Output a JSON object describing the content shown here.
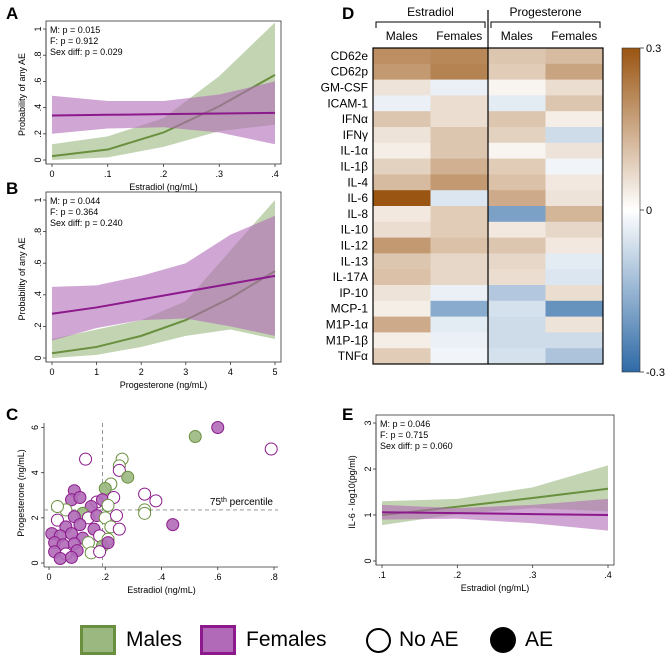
{
  "colors": {
    "males": "#6a8f3e",
    "males_fill": "#9ab87f",
    "females": "#8c1a8c",
    "females_fill": "#b06ab8",
    "heat_low": "#2f6aa6",
    "heat_high": "#9a5512"
  },
  "panels": {
    "A": "A",
    "B": "B",
    "C": "C",
    "D": "D",
    "E": "E"
  },
  "chart_data": [
    {
      "panel": "A",
      "type": "line",
      "xlabel": "Estradiol (ng/mL)",
      "ylabel": "Probability of any AE",
      "xlim": [
        0,
        0.4
      ],
      "ylim": [
        0,
        1
      ],
      "xticks": [
        "0",
        ".1",
        ".2",
        ".3",
        ".4"
      ],
      "xtick_values": [
        0,
        0.1,
        0.2,
        0.3,
        0.4
      ],
      "yticks": [
        "0",
        ".2",
        ".4",
        ".6",
        ".8",
        "1"
      ],
      "ytick_values": [
        0,
        0.2,
        0.4,
        0.6,
        0.8,
        1
      ],
      "annotations": [
        "M: p = 0.015",
        "F: p = 0.912",
        "Sex diff: p = 0.029"
      ],
      "series": [
        {
          "name": "Males",
          "x": [
            0,
            0.1,
            0.2,
            0.3,
            0.4
          ],
          "y": [
            0.03,
            0.08,
            0.21,
            0.41,
            0.65
          ],
          "ci_low": [
            0.0,
            0.02,
            0.1,
            0.22,
            0.27
          ],
          "ci_high": [
            0.12,
            0.18,
            0.32,
            0.64,
            1.05
          ]
        },
        {
          "name": "Females",
          "x": [
            0,
            0.1,
            0.2,
            0.3,
            0.4
          ],
          "y": [
            0.34,
            0.345,
            0.35,
            0.355,
            0.36
          ],
          "ci_low": [
            0.2,
            0.24,
            0.25,
            0.21,
            0.12
          ],
          "ci_high": [
            0.49,
            0.45,
            0.45,
            0.5,
            0.6
          ]
        }
      ]
    },
    {
      "panel": "B",
      "type": "line",
      "xlabel": "Progesterone (ng/mL)",
      "ylabel": "Probability of any AE",
      "xlim": [
        0,
        5
      ],
      "ylim": [
        0,
        1
      ],
      "xticks": [
        "0",
        "1",
        "2",
        "3",
        "4",
        "5"
      ],
      "xtick_values": [
        0,
        1,
        2,
        3,
        4,
        5
      ],
      "yticks": [
        "0",
        ".2",
        ".4",
        ".6",
        ".8",
        "1"
      ],
      "ytick_values": [
        0,
        0.2,
        0.4,
        0.6,
        0.8,
        1
      ],
      "annotations": [
        "M: p = 0.044",
        "F: p = 0.364",
        "Sex diff: p = 0.240"
      ],
      "series": [
        {
          "name": "Males",
          "x": [
            0,
            1,
            2,
            3,
            4,
            5
          ],
          "y": [
            0.03,
            0.07,
            0.14,
            0.24,
            0.38,
            0.55
          ],
          "ci_low": [
            0.0,
            0.02,
            0.07,
            0.14,
            0.18,
            0.12
          ],
          "ci_high": [
            0.12,
            0.18,
            0.24,
            0.36,
            0.68,
            1.0
          ]
        },
        {
          "name": "Females",
          "x": [
            0,
            1,
            2,
            3,
            4,
            5
          ],
          "y": [
            0.28,
            0.32,
            0.37,
            0.42,
            0.47,
            0.52
          ],
          "ci_low": [
            0.11,
            0.19,
            0.24,
            0.25,
            0.2,
            0.14
          ],
          "ci_high": [
            0.45,
            0.46,
            0.52,
            0.6,
            0.78,
            0.9
          ]
        }
      ]
    },
    {
      "panel": "C",
      "type": "scatter",
      "xlabel": "Estradiol (ng/mL)",
      "ylabel": "Progesterone (ng/mL)",
      "xlim": [
        0,
        0.8
      ],
      "ylim": [
        0,
        6.2
      ],
      "xticks": [
        "0",
        ".2",
        ".4",
        ".6",
        ".8"
      ],
      "xtick_values": [
        0,
        0.2,
        0.4,
        0.6,
        0.8
      ],
      "yticks": [
        "0",
        "2",
        "4",
        "6"
      ],
      "ytick_values": [
        0,
        2,
        4,
        6
      ],
      "reference_x": 0.19,
      "reference_y": 2.35,
      "reference_label": "75",
      "reference_label_sup": "th",
      "reference_label_tail": " percentile",
      "points": [
        {
          "x": 0.52,
          "y": 5.6,
          "group": "Males",
          "ae": true
        },
        {
          "x": 0.6,
          "y": 6.0,
          "group": "Females",
          "ae": true
        },
        {
          "x": 0.79,
          "y": 5.05,
          "group": "Females",
          "ae": false
        },
        {
          "x": 0.13,
          "y": 4.6,
          "group": "Females",
          "ae": false
        },
        {
          "x": 0.26,
          "y": 4.6,
          "group": "Males",
          "ae": false
        },
        {
          "x": 0.25,
          "y": 4.3,
          "group": "Males",
          "ae": false
        },
        {
          "x": 0.25,
          "y": 4.1,
          "group": "Females",
          "ae": false
        },
        {
          "x": 0.28,
          "y": 3.8,
          "group": "Males",
          "ae": true
        },
        {
          "x": 0.22,
          "y": 3.5,
          "group": "Males",
          "ae": false
        },
        {
          "x": 0.2,
          "y": 3.3,
          "group": "Males",
          "ae": true
        },
        {
          "x": 0.34,
          "y": 3.05,
          "group": "Females",
          "ae": false
        },
        {
          "x": 0.38,
          "y": 2.75,
          "group": "Females",
          "ae": false
        },
        {
          "x": 0.34,
          "y": 2.35,
          "group": "Males",
          "ae": false
        },
        {
          "x": 0.34,
          "y": 2.2,
          "group": "Males",
          "ae": false
        },
        {
          "x": 0.44,
          "y": 1.7,
          "group": "Females",
          "ae": true
        },
        {
          "x": 0.09,
          "y": 3.2,
          "group": "Females",
          "ae": true
        },
        {
          "x": 0.08,
          "y": 2.8,
          "group": "Females",
          "ae": true
        },
        {
          "x": 0.11,
          "y": 2.9,
          "group": "Females",
          "ae": true
        },
        {
          "x": 0.17,
          "y": 2.7,
          "group": "Females",
          "ae": false
        },
        {
          "x": 0.15,
          "y": 2.5,
          "group": "Females",
          "ae": true
        },
        {
          "x": 0.19,
          "y": 2.8,
          "group": "Females",
          "ae": true
        },
        {
          "x": 0.23,
          "y": 2.9,
          "group": "Females",
          "ae": false
        },
        {
          "x": 0.21,
          "y": 2.55,
          "group": "Males",
          "ae": false
        },
        {
          "x": 0.06,
          "y": 2.35,
          "group": "Males",
          "ae": false
        },
        {
          "x": 0.03,
          "y": 2.5,
          "group": "Males",
          "ae": false
        },
        {
          "x": 0.12,
          "y": 2.2,
          "group": "Males",
          "ae": true
        },
        {
          "x": 0.09,
          "y": 2.05,
          "group": "Females",
          "ae": true
        },
        {
          "x": 0.14,
          "y": 2.0,
          "group": "Females",
          "ae": false
        },
        {
          "x": 0.17,
          "y": 2.1,
          "group": "Females",
          "ae": true
        },
        {
          "x": 0.2,
          "y": 2.0,
          "group": "Males",
          "ae": false
        },
        {
          "x": 0.24,
          "y": 2.1,
          "group": "Females",
          "ae": false
        },
        {
          "x": 0.03,
          "y": 1.9,
          "group": "Females",
          "ae": false
        },
        {
          "x": 0.06,
          "y": 1.6,
          "group": "Females",
          "ae": true
        },
        {
          "x": 0.11,
          "y": 1.7,
          "group": "Females",
          "ae": true
        },
        {
          "x": 0.16,
          "y": 1.5,
          "group": "Females",
          "ae": true
        },
        {
          "x": 0.22,
          "y": 1.6,
          "group": "Males",
          "ae": false
        },
        {
          "x": 0.25,
          "y": 1.5,
          "group": "Females",
          "ae": false
        },
        {
          "x": 0.01,
          "y": 1.3,
          "group": "Females",
          "ae": true
        },
        {
          "x": 0.04,
          "y": 1.2,
          "group": "Females",
          "ae": true
        },
        {
          "x": 0.08,
          "y": 1.3,
          "group": "Females",
          "ae": true
        },
        {
          "x": 0.12,
          "y": 1.1,
          "group": "Females",
          "ae": true
        },
        {
          "x": 0.18,
          "y": 1.2,
          "group": "Females",
          "ae": false
        },
        {
          "x": 0.21,
          "y": 1.05,
          "group": "Males",
          "ae": false
        },
        {
          "x": 0.02,
          "y": 0.9,
          "group": "Females",
          "ae": true
        },
        {
          "x": 0.05,
          "y": 0.8,
          "group": "Females",
          "ae": true
        },
        {
          "x": 0.09,
          "y": 0.85,
          "group": "Females",
          "ae": true
        },
        {
          "x": 0.14,
          "y": 0.9,
          "group": "Males",
          "ae": false
        },
        {
          "x": 0.19,
          "y": 0.75,
          "group": "Males",
          "ae": true
        },
        {
          "x": 0.21,
          "y": 0.9,
          "group": "Females",
          "ae": true
        },
        {
          "x": 0.02,
          "y": 0.5,
          "group": "Females",
          "ae": true
        },
        {
          "x": 0.06,
          "y": 0.4,
          "group": "Females",
          "ae": false
        },
        {
          "x": 0.1,
          "y": 0.55,
          "group": "Females",
          "ae": true
        },
        {
          "x": 0.15,
          "y": 0.45,
          "group": "Males",
          "ae": false
        },
        {
          "x": 0.18,
          "y": 0.5,
          "group": "Females",
          "ae": false
        },
        {
          "x": 0.04,
          "y": 0.2,
          "group": "Females",
          "ae": true
        },
        {
          "x": 0.08,
          "y": 0.25,
          "group": "Females",
          "ae": true
        }
      ]
    },
    {
      "panel": "D",
      "type": "heatmap",
      "group_headers": [
        "Estradiol",
        "Progesterone"
      ],
      "columns": [
        "Males",
        "Females",
        "Males",
        "Females"
      ],
      "rows": [
        "CD62e",
        "CD62p",
        "GM-CSF",
        "ICAM-1",
        "IFNα",
        "IFNγ",
        "IL-1α",
        "IL-1β",
        "IL-4",
        "IL-6",
        "IL-8",
        "IL-10",
        "IL-12",
        "IL-13",
        "IL-17A",
        "IP-10",
        "MCP-1",
        "M1P-1α",
        "M1P-1β",
        "TNFα"
      ],
      "values": [
        [
          0.2,
          0.21,
          0.1,
          0.12
        ],
        [
          0.18,
          0.22,
          0.09,
          0.16
        ],
        [
          0.05,
          -0.03,
          0.02,
          0.06
        ],
        [
          -0.03,
          0.06,
          -0.04,
          0.1
        ],
        [
          0.1,
          0.06,
          0.1,
          0.03
        ],
        [
          0.05,
          0.1,
          0.08,
          -0.07
        ],
        [
          0.03,
          0.1,
          0.02,
          0.05
        ],
        [
          0.08,
          0.14,
          0.09,
          -0.02
        ],
        [
          0.12,
          0.18,
          0.11,
          0.04
        ],
        [
          0.3,
          -0.05,
          0.15,
          0.05
        ],
        [
          0.04,
          0.09,
          -0.19,
          0.13
        ],
        [
          0.06,
          0.09,
          0.04,
          0.07
        ],
        [
          0.18,
          0.11,
          0.1,
          0.04
        ],
        [
          0.1,
          0.07,
          0.07,
          -0.04
        ],
        [
          0.11,
          0.07,
          0.06,
          -0.05
        ],
        [
          0.05,
          -0.03,
          -0.11,
          0.06
        ],
        [
          0.03,
          -0.17,
          -0.06,
          -0.22
        ],
        [
          0.15,
          -0.04,
          -0.07,
          0.05
        ],
        [
          0.03,
          -0.03,
          -0.07,
          -0.07
        ],
        [
          0.09,
          -0.02,
          -0.06,
          -0.12
        ]
      ],
      "colorbar_ticks": [
        "0.3",
        "0",
        "-0.3"
      ],
      "colorbar_values": [
        0.3,
        0,
        -0.3
      ],
      "vmin": -0.3,
      "vmax": 0.3
    },
    {
      "panel": "E",
      "type": "line",
      "xlabel": "Estradiol (ng/mL)",
      "ylabel": "IL-6 - log10(pg/ml)",
      "xlim": [
        0.1,
        0.4
      ],
      "ylim": [
        0,
        3
      ],
      "xticks": [
        ".1",
        ".2",
        ".3",
        ".4"
      ],
      "xtick_values": [
        0.1,
        0.2,
        0.3,
        0.4
      ],
      "yticks": [
        "0",
        "1",
        "2",
        "3"
      ],
      "ytick_values": [
        0,
        1,
        2,
        3
      ],
      "annotations": [
        "M: p = 0.046",
        "F:  p = 0.715",
        "Sex diff: p = 0.060"
      ],
      "series": [
        {
          "name": "Males",
          "x": [
            0.1,
            0.2,
            0.3,
            0.4
          ],
          "y": [
            1.0,
            1.18,
            1.37,
            1.57
          ],
          "ci_low": [
            0.78,
            1.02,
            1.15,
            1.08
          ],
          "ci_high": [
            1.3,
            1.35,
            1.6,
            2.08
          ]
        },
        {
          "name": "Females",
          "x": [
            0.1,
            0.2,
            0.3,
            0.4
          ],
          "y": [
            1.06,
            1.04,
            1.02,
            1.0
          ],
          "ci_low": [
            0.9,
            0.92,
            0.82,
            0.66
          ],
          "ci_high": [
            1.22,
            1.15,
            1.22,
            1.35
          ]
        }
      ]
    }
  ],
  "legend": {
    "males": "Males",
    "females": "Females",
    "no_ae": "No AE",
    "ae": "AE"
  }
}
